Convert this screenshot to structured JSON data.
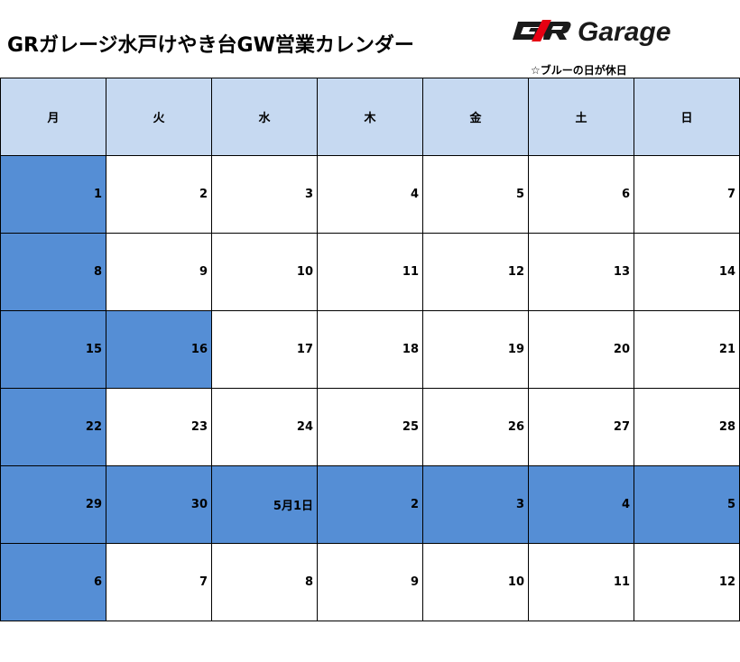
{
  "title": "GRガレージ水戸けやき台GW営業カレンダー",
  "logo": {
    "text": "Garage",
    "badge": "GR",
    "color": "#1a1a1a",
    "accent": "#e60012"
  },
  "note": "☆ブルーの日が休日",
  "colors": {
    "header": "#c6d9f1",
    "holiday": "#558ed5",
    "open": "#ffffff"
  },
  "calendar": {
    "weekdays": [
      "月",
      "火",
      "水",
      "木",
      "金",
      "土",
      "日"
    ],
    "weeks": [
      {
        "days": [
          {
            "label": "1",
            "holiday": true
          },
          {
            "label": "2",
            "holiday": false
          },
          {
            "label": "3",
            "holiday": false
          },
          {
            "label": "4",
            "holiday": false
          },
          {
            "label": "5",
            "holiday": false
          },
          {
            "label": "6",
            "holiday": false
          },
          {
            "label": "7",
            "holiday": false
          }
        ]
      },
      {
        "days": [
          {
            "label": "8",
            "holiday": true
          },
          {
            "label": "9",
            "holiday": false
          },
          {
            "label": "10",
            "holiday": false
          },
          {
            "label": "11",
            "holiday": false
          },
          {
            "label": "12",
            "holiday": false
          },
          {
            "label": "13",
            "holiday": false
          },
          {
            "label": "14",
            "holiday": false
          }
        ]
      },
      {
        "days": [
          {
            "label": "15",
            "holiday": true
          },
          {
            "label": "16",
            "holiday": true
          },
          {
            "label": "17",
            "holiday": false
          },
          {
            "label": "18",
            "holiday": false
          },
          {
            "label": "19",
            "holiday": false
          },
          {
            "label": "20",
            "holiday": false
          },
          {
            "label": "21",
            "holiday": false
          }
        ]
      },
      {
        "days": [
          {
            "label": "22",
            "holiday": true
          },
          {
            "label": "23",
            "holiday": false
          },
          {
            "label": "24",
            "holiday": false
          },
          {
            "label": "25",
            "holiday": false
          },
          {
            "label": "26",
            "holiday": false
          },
          {
            "label": "27",
            "holiday": false
          },
          {
            "label": "28",
            "holiday": false
          }
        ]
      },
      {
        "days": [
          {
            "label": "29",
            "holiday": true
          },
          {
            "label": "30",
            "holiday": true
          },
          {
            "label": "5月1日",
            "holiday": true
          },
          {
            "label": "2",
            "holiday": true
          },
          {
            "label": "3",
            "holiday": true
          },
          {
            "label": "4",
            "holiday": true
          },
          {
            "label": "5",
            "holiday": true
          }
        ]
      },
      {
        "days": [
          {
            "label": "6",
            "holiday": true
          },
          {
            "label": "7",
            "holiday": false
          },
          {
            "label": "8",
            "holiday": false
          },
          {
            "label": "9",
            "holiday": false
          },
          {
            "label": "10",
            "holiday": false
          },
          {
            "label": "11",
            "holiday": false
          },
          {
            "label": "12",
            "holiday": false
          }
        ]
      }
    ]
  }
}
